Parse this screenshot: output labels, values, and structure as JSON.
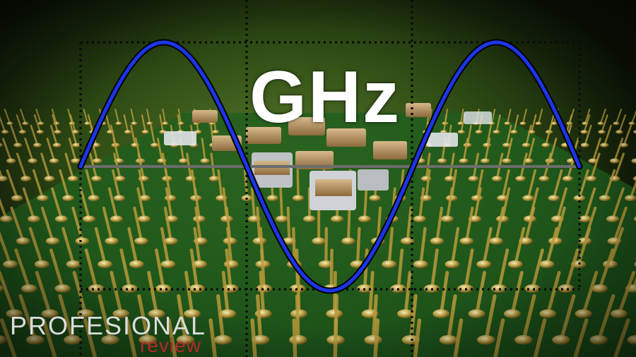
{
  "image": {
    "headline": "GHz",
    "wave": {
      "cycles": 1.5,
      "stroke_color": "#1a36e8"
    },
    "colors": {
      "headline": "#ffffff",
      "board": "#1f5e1e",
      "pins": "#b89a3a",
      "grid": "#0a0a0a",
      "midline": "#6c6c6c"
    }
  },
  "watermark": {
    "brand_top": "PROFESIONAL",
    "brand_bottom": "review",
    "color_top": "#dcdcdc",
    "color_bottom": "#b8262b"
  }
}
